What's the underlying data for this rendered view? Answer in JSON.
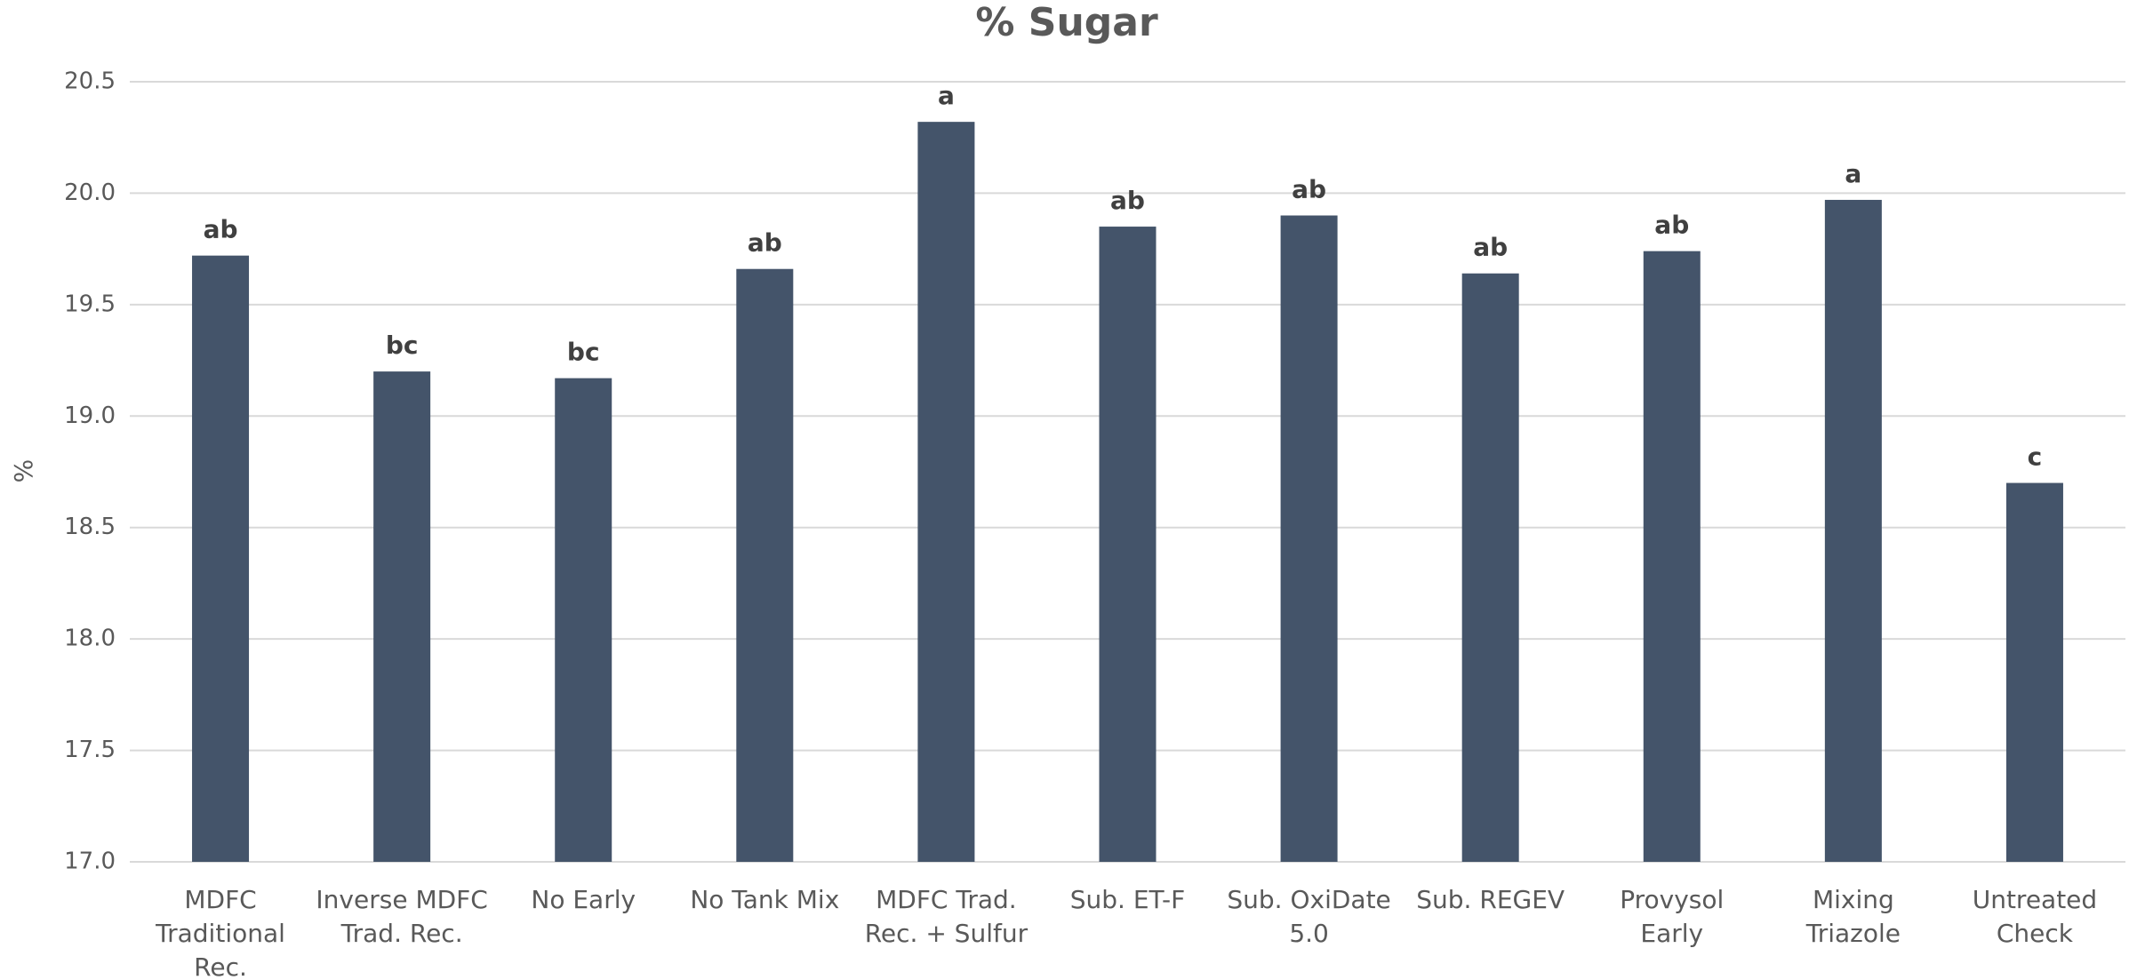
{
  "chart_data": {
    "type": "bar",
    "title": "% Sugar",
    "y_label": "%",
    "categories": [
      "MDFC Traditional Rec.",
      "Inverse MDFC Trad. Rec.",
      "No Early",
      "No Tank Mix",
      "MDFC Trad. Rec. + Sulfur",
      "Sub. ET-F",
      "Sub. OxiDate 5.0",
      "Sub. REGEV",
      "Provysol Early",
      "Mixing Triazole",
      "Untreated Check"
    ],
    "values": [
      19.72,
      19.2,
      19.17,
      19.66,
      20.32,
      19.85,
      19.9,
      19.64,
      19.74,
      19.97,
      18.7
    ],
    "annotations": [
      "ab",
      "bc",
      "bc",
      "ab",
      "a",
      "ab",
      "ab",
      "ab",
      "ab",
      "a",
      "c"
    ],
    "color": "#44546a",
    "ylim": [
      17,
      20.5
    ],
    "yticks": [
      {
        "value": 17,
        "label": "17.0"
      },
      17.5,
      {
        "value": 18,
        "label": "18.0"
      },
      18.5,
      {
        "value": 19,
        "label": "19.0"
      },
      19.5,
      {
        "value": 20,
        "label": "20.0"
      },
      20.5
    ],
    "grid": true
  }
}
